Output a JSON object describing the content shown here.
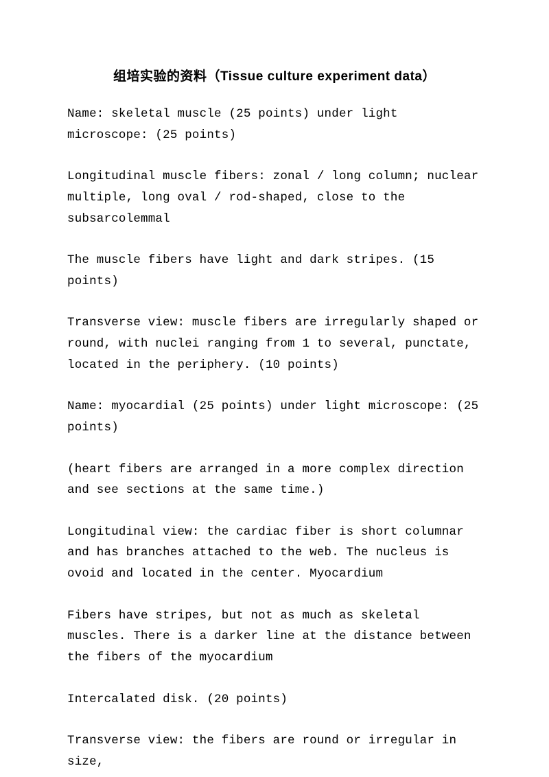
{
  "title": "组培实验的资料（Tissue culture experiment data）",
  "paragraphs": [
    "Name: skeletal muscle (25 points) under light microscope: (25 points)",
    "Longitudinal muscle fibers: zonal / long column; nuclear multiple, long oval / rod-shaped, close to the subsarcolemmal",
    "The muscle fibers have light and dark stripes. (15 points)",
    "Transverse view: muscle fibers are irregularly shaped or round, with nuclei ranging from 1 to several, punctate, located in the periphery. (10 points)",
    "Name: myocardial (25 points) under light microscope: (25 points)",
    "(heart fibers are arranged in a more complex direction and see sections at the same time.)",
    "Longitudinal view: the cardiac fiber is short columnar and has branches attached to the web. The nucleus is ovoid and located in the center. Myocardium",
    "Fibers have stripes, but not as much as skeletal muscles. There is a darker line at the distance between the fibers of the myocardium",
    "Intercalated disk. (20 points)",
    "Transverse view: the fibers are round or irregular in size,"
  ]
}
